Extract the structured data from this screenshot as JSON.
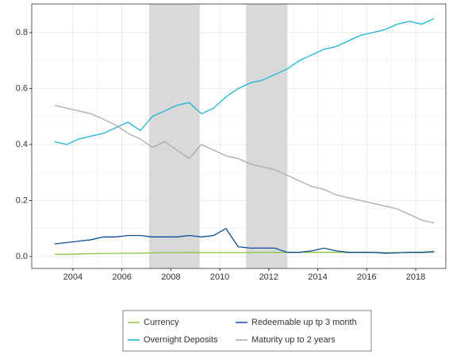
{
  "chart_data": {
    "type": "line",
    "x": [
      2003.25,
      2003.75,
      2004.25,
      2004.75,
      2005.25,
      2005.75,
      2006.25,
      2006.75,
      2007.25,
      2007.75,
      2008.25,
      2008.75,
      2009.25,
      2009.75,
      2010.25,
      2010.75,
      2011.25,
      2011.75,
      2012.25,
      2012.75,
      2013.25,
      2013.75,
      2014.25,
      2014.75,
      2015.25,
      2015.75,
      2016.25,
      2016.75,
      2017.25,
      2017.75,
      2018.25,
      2018.75
    ],
    "series": [
      {
        "name": "Currency",
        "color": "#8cc63f",
        "values": [
          0.008,
          0.008,
          0.009,
          0.01,
          0.011,
          0.011,
          0.012,
          0.012,
          0.013,
          0.014,
          0.014,
          0.015,
          0.014,
          0.014,
          0.014,
          0.014,
          0.014,
          0.015,
          0.015,
          0.015,
          0.015,
          0.015,
          0.015,
          0.015,
          0.014,
          0.014,
          0.014,
          0.014,
          0.014,
          0.014,
          0.014,
          0.015
        ]
      },
      {
        "name": "Redeemable up tp 3 month",
        "color": "#0b4d9b",
        "values": [
          0.045,
          0.05,
          0.055,
          0.06,
          0.07,
          0.07,
          0.075,
          0.075,
          0.07,
          0.07,
          0.07,
          0.075,
          0.07,
          0.075,
          0.1,
          0.035,
          0.03,
          0.03,
          0.03,
          0.015,
          0.015,
          0.02,
          0.03,
          0.02,
          0.015,
          0.015,
          0.015,
          0.012,
          0.013,
          0.015,
          0.015,
          0.018
        ]
      },
      {
        "name": "Overnight Deposits",
        "color": "#1ab6d6",
        "values": [
          0.41,
          0.4,
          0.42,
          0.43,
          0.44,
          0.46,
          0.48,
          0.45,
          0.5,
          0.52,
          0.54,
          0.55,
          0.51,
          0.53,
          0.57,
          0.6,
          0.62,
          0.63,
          0.65,
          0.67,
          0.7,
          0.72,
          0.74,
          0.75,
          0.77,
          0.79,
          0.8,
          0.81,
          0.83,
          0.84,
          0.83,
          0.85
        ]
      },
      {
        "name": "Maturity up to 2 years",
        "color": "#aaaaaa",
        "values": [
          0.54,
          0.53,
          0.52,
          0.51,
          0.49,
          0.47,
          0.44,
          0.42,
          0.39,
          0.41,
          0.38,
          0.35,
          0.4,
          0.38,
          0.36,
          0.35,
          0.33,
          0.32,
          0.31,
          0.29,
          0.27,
          0.25,
          0.24,
          0.22,
          0.21,
          0.2,
          0.19,
          0.18,
          0.17,
          0.15,
          0.13,
          0.12
        ]
      }
    ],
    "shaded": [
      [
        2007.11,
        2009.18
      ],
      [
        2011.07,
        2012.76
      ]
    ],
    "xlim": [
      2002.32,
      2019.23
    ],
    "xticks": [
      2004,
      2006,
      2008,
      2010,
      2012,
      2014,
      2016,
      2018
    ],
    "ylim": [
      -0.0426,
      0.902
    ],
    "yticks": [
      {
        "value": 0,
        "label": "0.0"
      },
      0.2,
      0.4,
      0.6,
      0.8
    ],
    "grid": true,
    "minor_grid": true,
    "legend": "bottom"
  }
}
